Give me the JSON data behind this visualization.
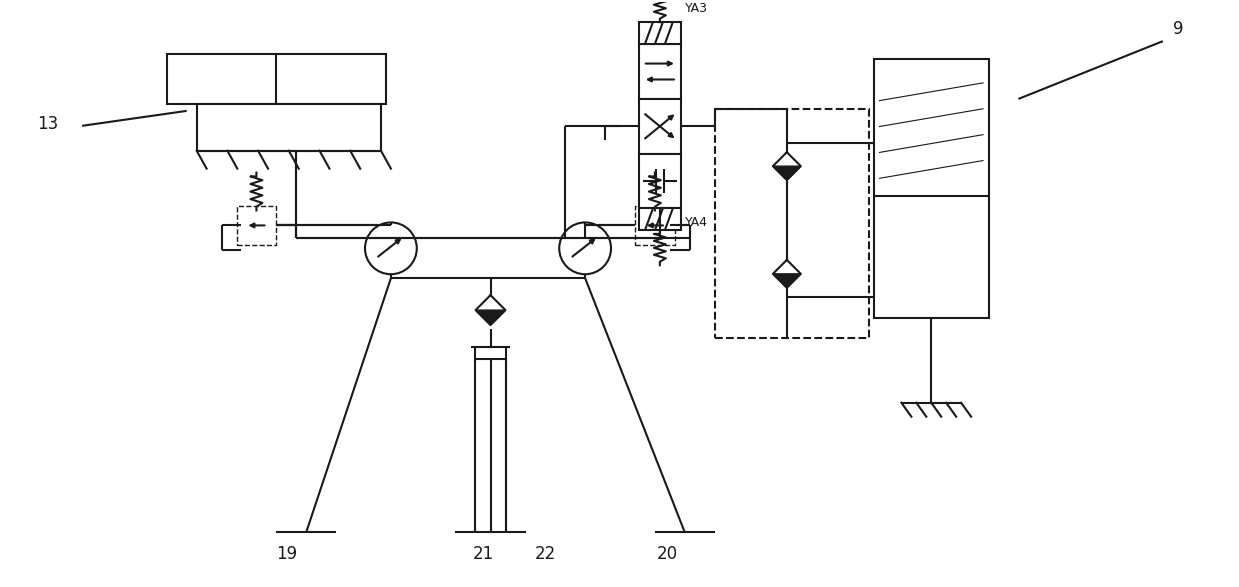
{
  "bg": "#ffffff",
  "lc": "#1a1a1a",
  "lw": 1.5,
  "lw_thin": 1.0,
  "lw_thick": 2.0,
  "figw": 12.39,
  "figh": 5.87,
  "dpi": 100
}
